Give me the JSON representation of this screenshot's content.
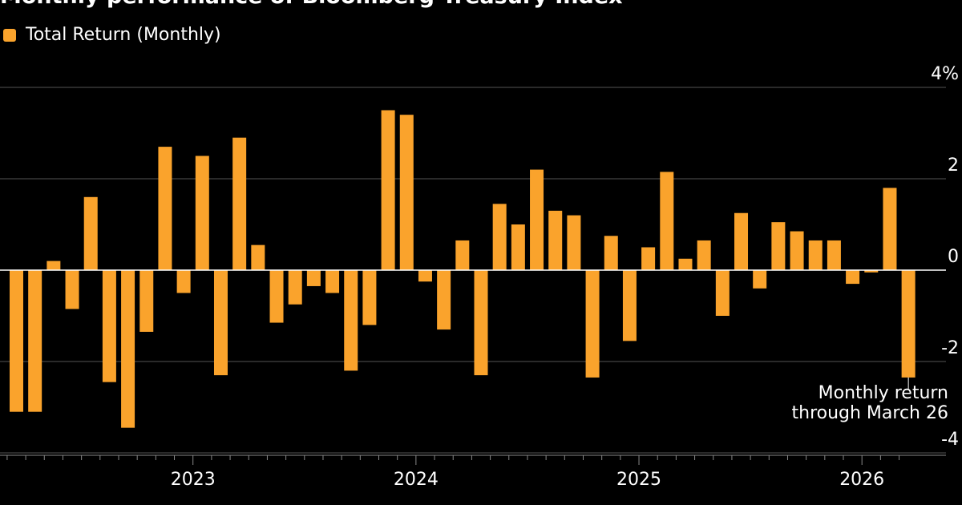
{
  "chart_data": {
    "type": "bar",
    "title": "Monthly performance of Bloomberg Treasury Index",
    "series": [
      {
        "name": "Total Return (Monthly)",
        "color": "#FAA32C",
        "values": [
          -3.1,
          -3.1,
          0.2,
          -0.85,
          1.6,
          -2.45,
          -3.45,
          -1.35,
          2.7,
          -0.5,
          2.5,
          -2.3,
          2.9,
          0.55,
          -1.15,
          -0.75,
          -0.35,
          -0.5,
          -2.2,
          -1.2,
          3.5,
          3.4,
          -0.25,
          -1.3,
          0.65,
          -2.3,
          1.45,
          1.0,
          2.2,
          1.3,
          1.2,
          -2.35,
          0.75,
          -1.55,
          0.5,
          2.15,
          0.25,
          0.65,
          -1.0,
          1.25,
          -0.4,
          1.05,
          0.85,
          0.65,
          0.65,
          -0.3,
          -0.05,
          1.8,
          -2.35
        ]
      }
    ],
    "x_tick_labels": [
      "2023",
      "2024",
      "2025",
      "2026"
    ],
    "x_tick_month_index": [
      10,
      22,
      34,
      46
    ],
    "y_ticks": [
      4,
      2,
      0,
      -2,
      -4
    ],
    "y_tick_labels": [
      "4%",
      "2",
      "0",
      "-2",
      "-4"
    ],
    "ylim": [
      -4,
      4
    ],
    "grid": true,
    "annotation": {
      "lines": [
        "Monthly return",
        "through March 26"
      ],
      "target_index": 48
    }
  }
}
